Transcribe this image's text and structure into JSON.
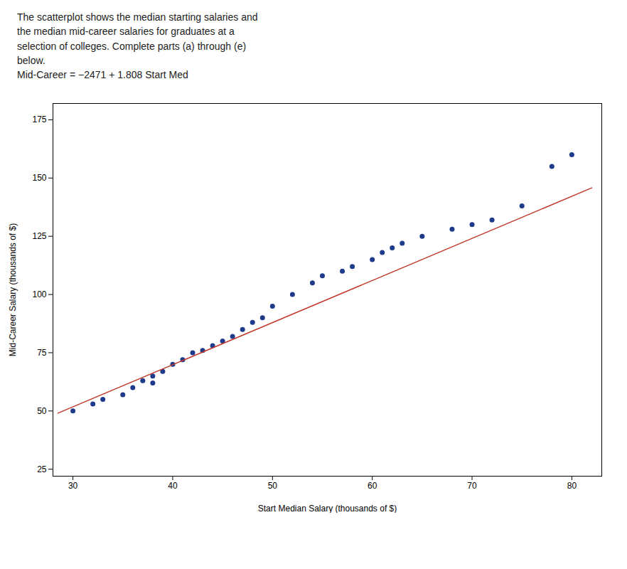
{
  "chart_data": {
    "type": "scatter",
    "annotations": [
      "The scatterplot shows the median starting salaries and",
      "the median mid-career salaries for graduates at a",
      "selection of colleges. Complete parts (a) through (e)",
      "below.",
      "Mid-Career = −2471 + 1.808 Start Med"
    ],
    "x_label": "Start Median Salary (thousands of $)",
    "y_label": "Mid-Career Salary (thousands of $)",
    "series": [
      {
        "type": "scatter",
        "color": "#1e3a8a",
        "x": [
          30,
          32,
          33,
          35,
          36,
          37,
          38,
          38,
          39,
          40,
          41,
          42,
          43,
          44,
          45,
          46,
          47,
          48,
          49,
          50,
          52,
          54,
          55,
          57,
          58,
          60,
          61,
          62,
          63,
          65,
          68,
          70,
          72,
          75,
          78,
          80
        ],
        "values": [
          50,
          53,
          55,
          57,
          60,
          63,
          62,
          65,
          67,
          70,
          72,
          75,
          76,
          78,
          80,
          82,
          85,
          88,
          90,
          95,
          100,
          105,
          108,
          110,
          112,
          115,
          118,
          120,
          122,
          125,
          128,
          130,
          132,
          138,
          155,
          160
        ]
      },
      {
        "type": "line",
        "color": "#c0392b",
        "x": [
          28.5,
          82
        ],
        "values": [
          49.057,
          145.785
        ]
      }
    ],
    "xlim": [
      28,
      83
    ],
    "ylim": [
      22,
      182
    ],
    "xticks": [
      30,
      40,
      50,
      60,
      70,
      80
    ],
    "yticks": [
      25,
      50,
      75,
      100,
      125,
      150,
      175
    ],
    "grid": false
  }
}
